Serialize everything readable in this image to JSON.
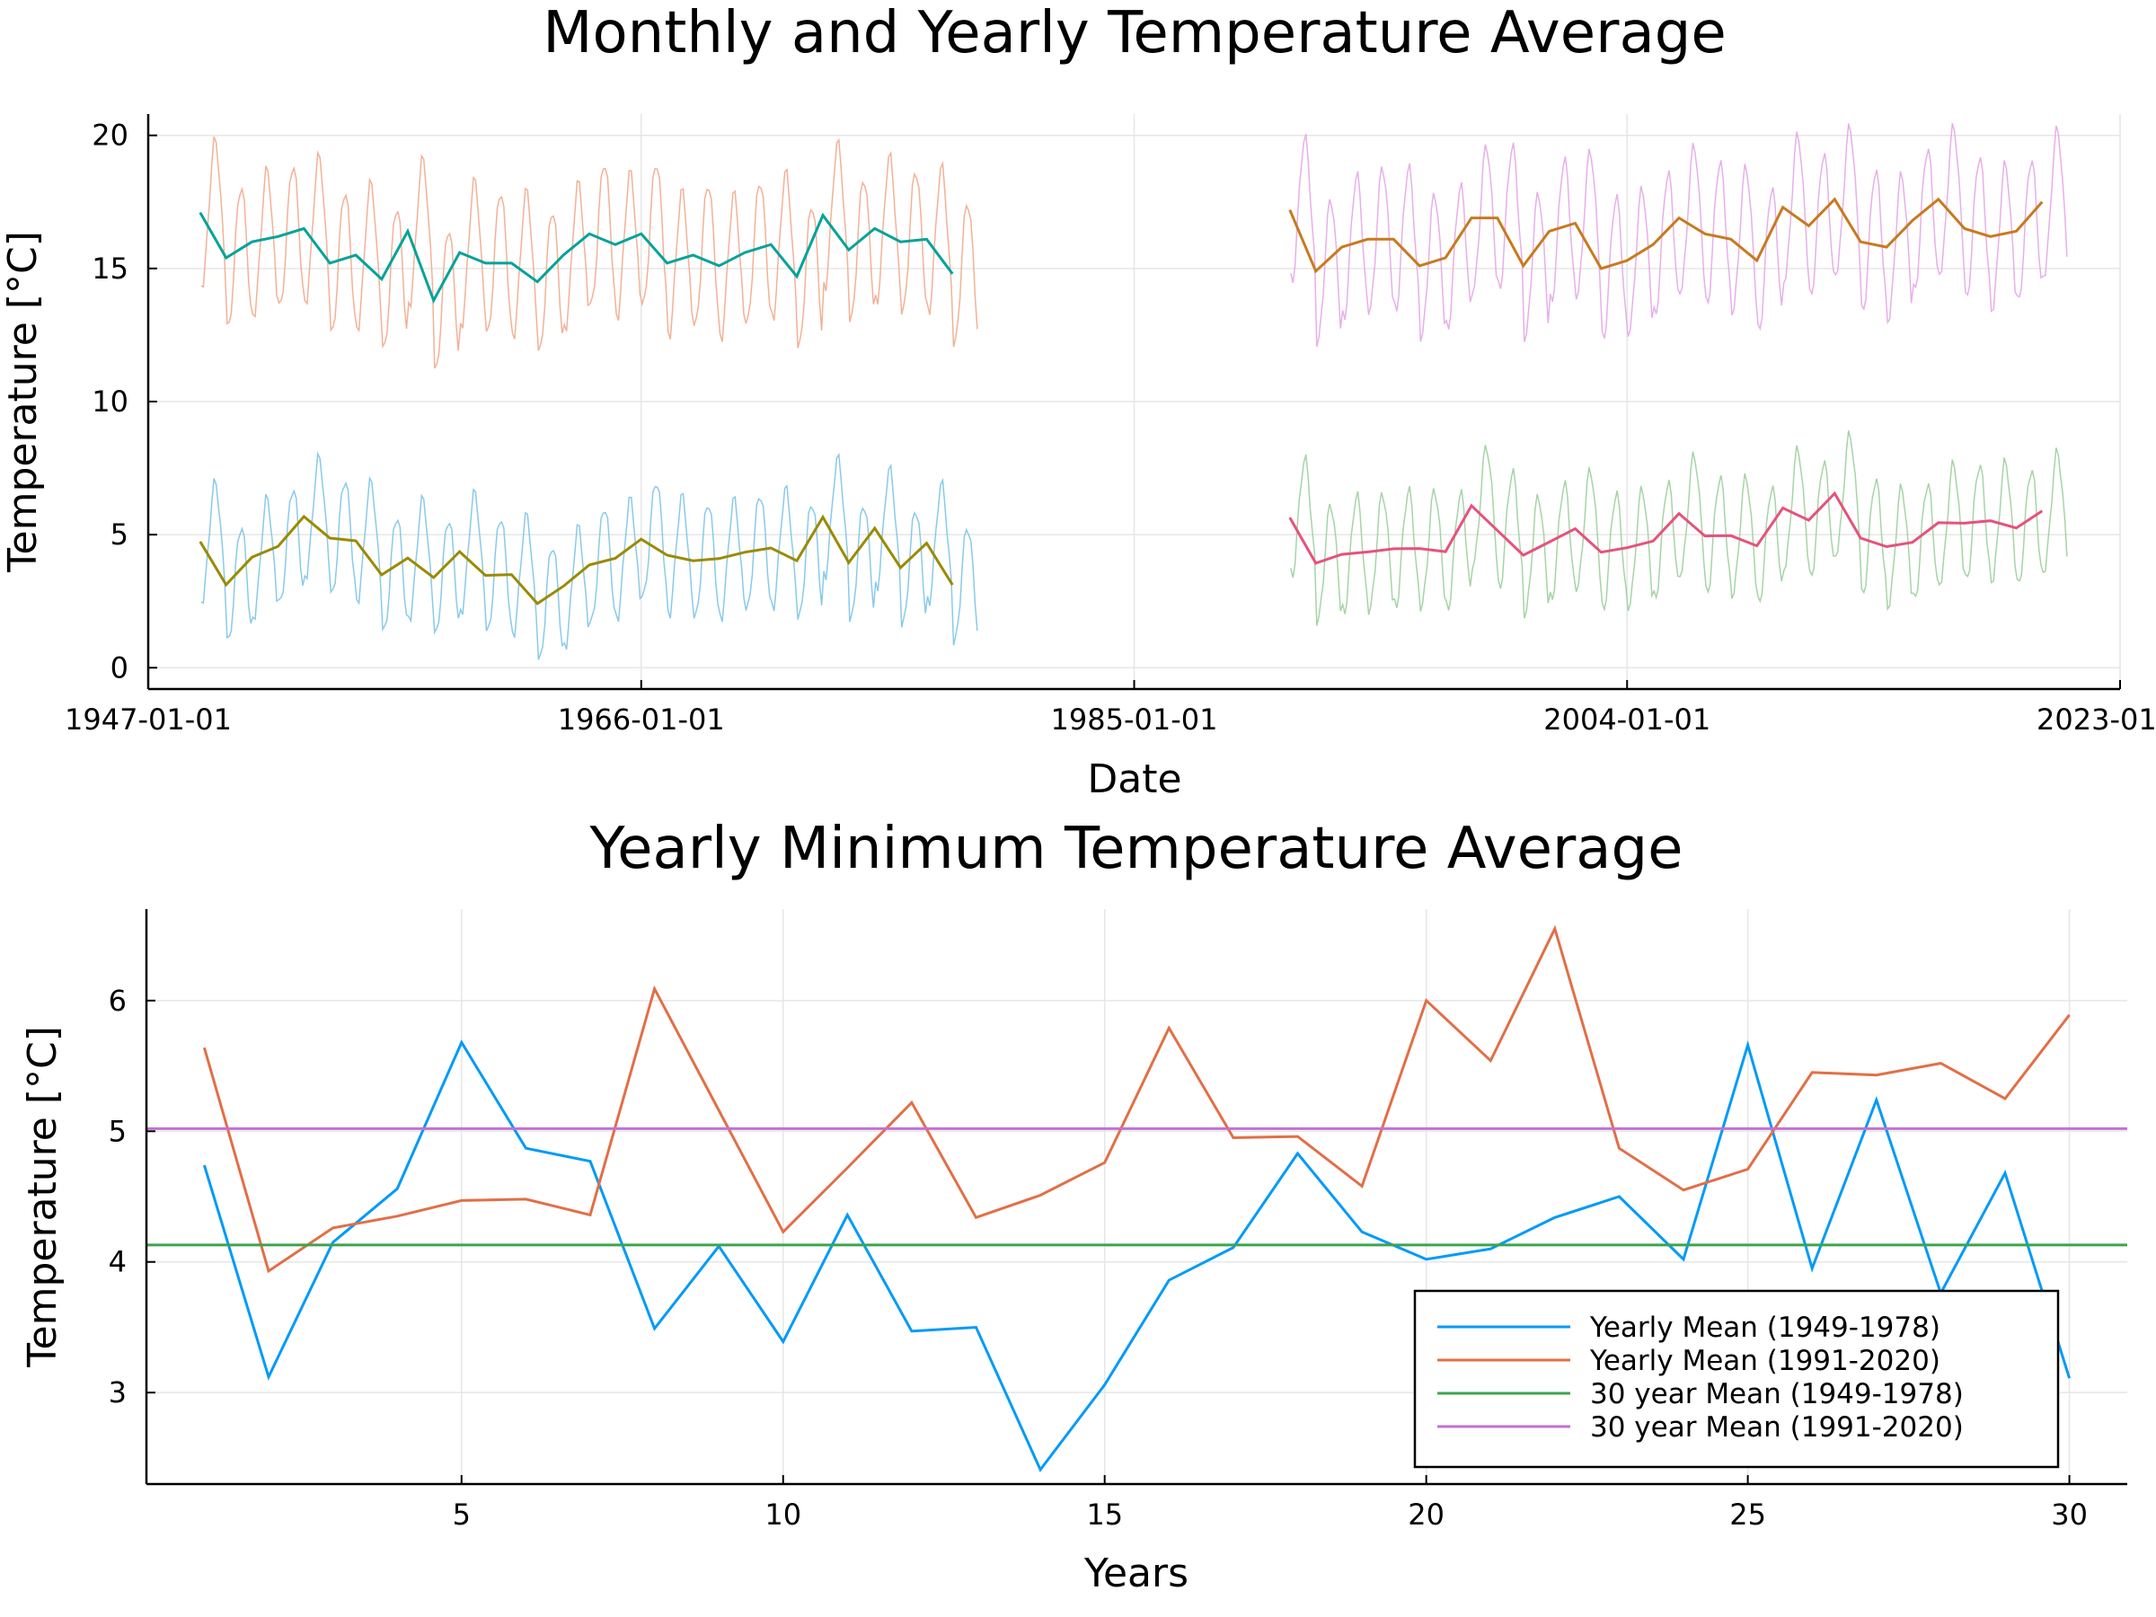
{
  "colors": {
    "monthly_max_1949_1978": "#f2a88c",
    "yearly_max_1949_1978": "#00a39a",
    "monthly_min_1949_1978": "#7cc4e8",
    "yearly_min_1949_1978": "#9b8a00",
    "monthly_max_1991_2020": "#e4a6e8",
    "yearly_max_1991_2020": "#c87a1e",
    "monthly_min_1991_2020": "#9ccf9c",
    "yearly_min_1991_2020": "#e6527c",
    "blue": "#009af9",
    "orange": "#e26f46",
    "green": "#3da44d",
    "purple": "#c271d2"
  },
  "chart_data": [
    {
      "type": "line",
      "title": "Monthly and Yearly Temperature Average",
      "xlabel": "Date",
      "ylabel": "Temperature [°C]",
      "xlim": [
        "1947-01-01",
        "2023-01-01"
      ],
      "ylim": [
        -0.8,
        20.8
      ],
      "x_tick_labels": [
        "1947-01-01",
        "1966-01-01",
        "1985-01-01",
        "2004-01-01",
        "2023-01-01"
      ],
      "y_ticks": [
        0,
        5,
        10,
        15,
        20
      ],
      "grid": true,
      "legend": "none",
      "yearly_series": [
        {
          "color_key": "yearly_max_1949_1978",
          "x_years": [
            1949,
            1950,
            1951,
            1952,
            1953,
            1954,
            1955,
            1956,
            1957,
            1958,
            1959,
            1960,
            1961,
            1962,
            1963,
            1964,
            1965,
            1966,
            1967,
            1968,
            1969,
            1970,
            1971,
            1972,
            1973,
            1974,
            1975,
            1976,
            1977,
            1978
          ],
          "values": [
            17.1,
            15.4,
            16.0,
            16.2,
            16.5,
            15.2,
            15.5,
            14.6,
            16.4,
            13.8,
            15.6,
            15.2,
            15.2,
            14.5,
            15.5,
            16.3,
            15.9,
            16.3,
            15.2,
            15.5,
            15.1,
            15.6,
            15.9,
            14.7,
            17.0,
            15.7,
            16.5,
            16.0,
            16.1,
            14.8
          ]
        },
        {
          "color_key": "yearly_min_1949_1978",
          "x_years": [
            1949,
            1950,
            1951,
            1952,
            1953,
            1954,
            1955,
            1956,
            1957,
            1958,
            1959,
            1960,
            1961,
            1962,
            1963,
            1964,
            1965,
            1966,
            1967,
            1968,
            1969,
            1970,
            1971,
            1972,
            1973,
            1974,
            1975,
            1976,
            1977,
            1978
          ],
          "values": [
            4.74,
            3.12,
            4.15,
            4.56,
            5.68,
            4.87,
            4.77,
            3.49,
            4.12,
            3.39,
            4.36,
            3.47,
            3.5,
            2.41,
            3.06,
            3.86,
            4.11,
            4.83,
            4.23,
            4.02,
            4.1,
            4.34,
            4.5,
            4.02,
            5.66,
            3.95,
            5.24,
            3.76,
            4.68,
            3.11
          ]
        },
        {
          "color_key": "yearly_max_1991_2020",
          "x_years": [
            1991,
            1992,
            1993,
            1994,
            1995,
            1996,
            1997,
            1998,
            1999,
            2000,
            2001,
            2002,
            2003,
            2004,
            2005,
            2006,
            2007,
            2008,
            2009,
            2010,
            2011,
            2012,
            2013,
            2014,
            2015,
            2016,
            2017,
            2018,
            2019,
            2020
          ],
          "values": [
            17.2,
            14.9,
            15.8,
            16.1,
            16.1,
            15.1,
            15.4,
            16.9,
            16.9,
            15.1,
            16.4,
            16.7,
            15.0,
            15.3,
            15.9,
            16.9,
            16.3,
            16.1,
            15.3,
            17.3,
            16.6,
            17.6,
            16.0,
            15.8,
            16.8,
            17.6,
            16.5,
            16.2,
            16.4,
            17.5
          ]
        },
        {
          "color_key": "yearly_min_1991_2020",
          "x_years": [
            1991,
            1992,
            1993,
            1994,
            1995,
            1996,
            1997,
            1998,
            1999,
            2000,
            2001,
            2002,
            2003,
            2004,
            2005,
            2006,
            2007,
            2008,
            2009,
            2010,
            2011,
            2012,
            2013,
            2014,
            2015,
            2016,
            2017,
            2018,
            2019,
            2020
          ],
          "values": [
            5.64,
            3.93,
            4.26,
            4.35,
            4.47,
            4.48,
            4.36,
            6.09,
            5.16,
            4.23,
            4.72,
            5.22,
            4.34,
            4.51,
            4.76,
            5.79,
            4.95,
            4.96,
            4.58,
            6.0,
            5.54,
            6.55,
            4.87,
            4.55,
            4.71,
            5.45,
            5.43,
            5.52,
            5.25,
            5.89
          ]
        }
      ],
      "monthly_series": [
        {
          "color_key": "monthly_max_1949_1978",
          "start_year": 1949,
          "end_year": 1978,
          "based_on": "yearly_max_1949_1978",
          "amplitude": 2.7
        },
        {
          "color_key": "monthly_min_1949_1978",
          "start_year": 1949,
          "end_year": 1978,
          "based_on": "yearly_min_1949_1978",
          "amplitude": 2.2
        },
        {
          "color_key": "monthly_max_1991_2020",
          "start_year": 1991,
          "end_year": 2020,
          "based_on": "yearly_max_1991_2020",
          "amplitude": 2.7
        },
        {
          "color_key": "monthly_min_1991_2020",
          "start_year": 1991,
          "end_year": 2020,
          "based_on": "yearly_min_1991_2020",
          "amplitude": 2.2
        }
      ]
    },
    {
      "type": "line",
      "title": "Yearly Minimum Temperature Average",
      "xlabel": "Years",
      "ylabel": "Temperature [°C]",
      "xlim": [
        0.1,
        30.9
      ],
      "ylim": [
        2.3,
        6.7
      ],
      "x_ticks": [
        5,
        10,
        15,
        20,
        25,
        30
      ],
      "y_ticks": [
        3,
        4,
        5,
        6
      ],
      "grid": true,
      "legend": "bottom-right",
      "x": [
        1,
        2,
        3,
        4,
        5,
        6,
        7,
        8,
        9,
        10,
        11,
        12,
        13,
        14,
        15,
        16,
        17,
        18,
        19,
        20,
        21,
        22,
        23,
        24,
        25,
        26,
        27,
        28,
        29,
        30
      ],
      "series": [
        {
          "name": "Yearly Mean (1949-1978)",
          "color_key": "blue",
          "values": [
            4.74,
            3.12,
            4.15,
            4.56,
            5.68,
            4.87,
            4.77,
            3.49,
            4.12,
            3.39,
            4.36,
            3.47,
            3.5,
            2.41,
            3.06,
            3.86,
            4.11,
            4.83,
            4.23,
            4.02,
            4.1,
            4.34,
            4.5,
            4.02,
            5.66,
            3.95,
            5.24,
            3.76,
            4.68,
            3.11
          ]
        },
        {
          "name": "Yearly Mean (1991-2020)",
          "color_key": "orange",
          "values": [
            5.64,
            3.93,
            4.26,
            4.35,
            4.47,
            4.48,
            4.36,
            6.09,
            5.16,
            4.23,
            4.72,
            5.22,
            4.34,
            4.51,
            4.76,
            5.79,
            4.95,
            4.96,
            4.58,
            6.0,
            5.54,
            6.55,
            4.87,
            4.55,
            4.71,
            5.45,
            5.43,
            5.52,
            5.25,
            5.89
          ]
        },
        {
          "name": "30 year Mean (1949-1978)",
          "color_key": "green",
          "constant": 4.13
        },
        {
          "name": "30 year Mean (1991-2020)",
          "color_key": "purple",
          "constant": 5.02
        }
      ]
    }
  ]
}
